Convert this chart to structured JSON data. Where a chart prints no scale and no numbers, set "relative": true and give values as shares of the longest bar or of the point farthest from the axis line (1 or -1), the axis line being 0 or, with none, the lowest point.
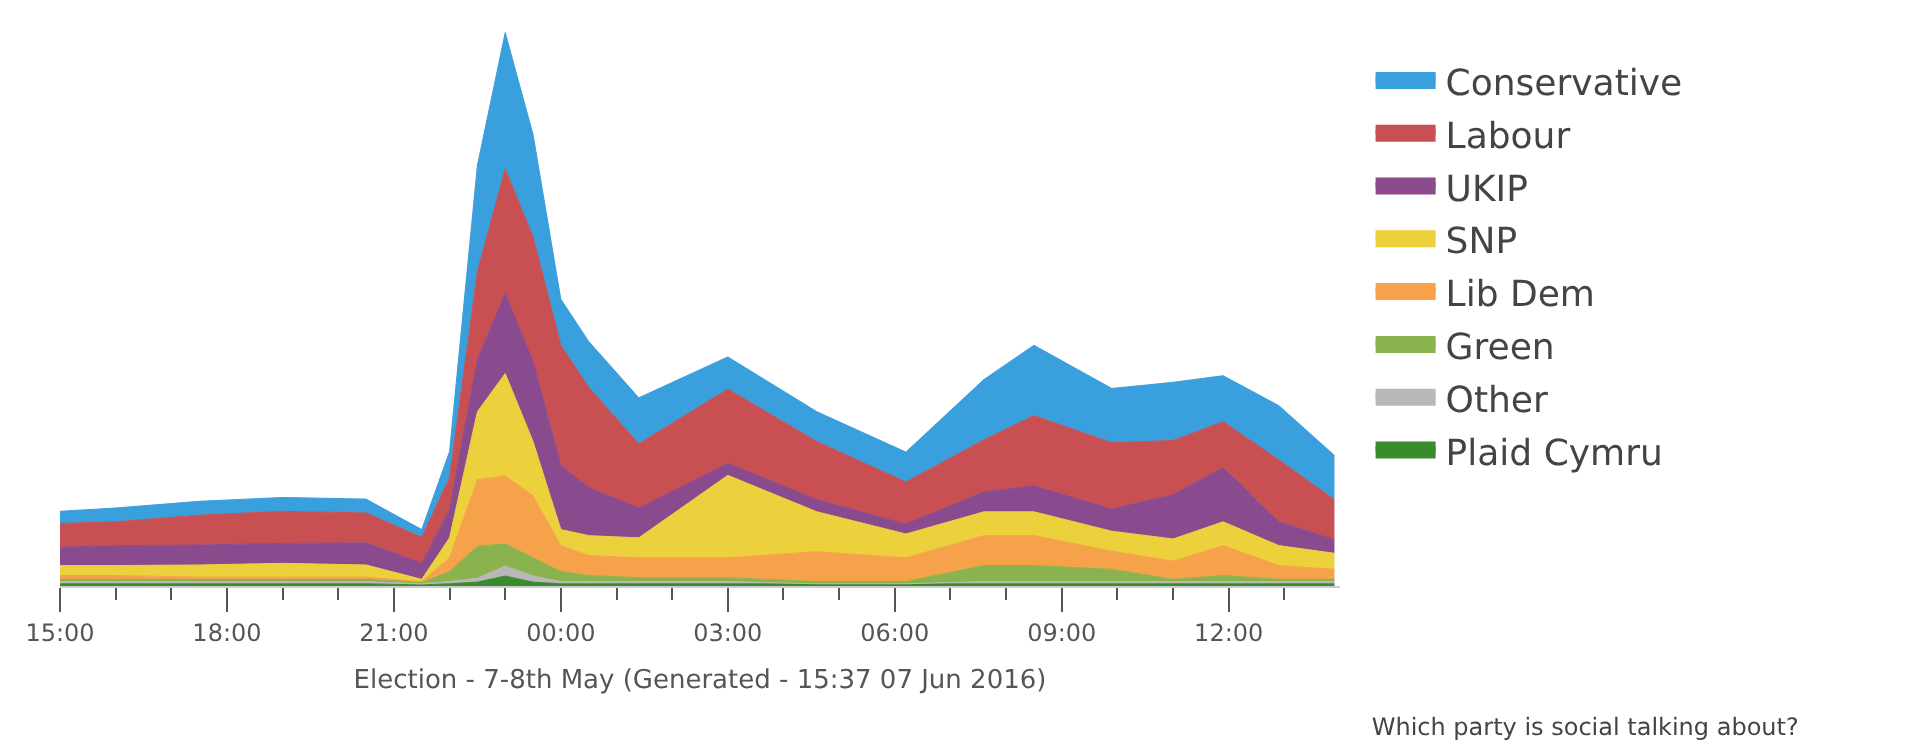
{
  "chart_data": {
    "type": "area",
    "stacked": true,
    "relative": true,
    "title": "Which party is social talking about?",
    "xlabel": "Election - 7-8th May (Generated - 15:37 07 Jun 2016)",
    "x": [
      "--05-07T15:00",
      "--05-07T16:00",
      "--05-07T17:30",
      "--05-07T19:00",
      "--05-07T20:30",
      "--05-07T21:30",
      "--05-07T22:00",
      "--05-07T22:30",
      "--05-07T23:00",
      "--05-07T23:30",
      "--05-08T00:00",
      "--05-08T00:30",
      "--05-08T01:24",
      "--05-08T03:00",
      "--05-08T04:36",
      "--05-08T06:12",
      "--05-08T07:36",
      "--05-08T08:30",
      "--05-08T09:54",
      "--05-08T11:00",
      "--05-08T11:54",
      "--05-08T12:54",
      "--05-08T13:54"
    ],
    "xticks": [
      {
        "value": "--05-07T15:00",
        "label": "15:00"
      },
      {
        "value": "--05-07T16:00",
        "label": null
      },
      {
        "value": "--05-07T17:00",
        "label": null
      },
      {
        "value": "--05-07T18:00",
        "label": "18:00"
      },
      {
        "value": "--05-07T19:00",
        "label": null
      },
      {
        "value": "--05-07T20:00",
        "label": null
      },
      {
        "value": "--05-07T21:00",
        "label": "21:00"
      },
      {
        "value": "--05-07T22:00",
        "label": null
      },
      {
        "value": "--05-07T23:00",
        "label": null
      },
      {
        "value": "--05-08T00:00",
        "label": "00:00"
      },
      {
        "value": "--05-08T01:00",
        "label": null
      },
      {
        "value": "--05-08T02:00",
        "label": null
      },
      {
        "value": "--05-08T03:00",
        "label": "03:00"
      },
      {
        "value": "--05-08T04:00",
        "label": null
      },
      {
        "value": "--05-08T05:00",
        "label": null
      },
      {
        "value": "--05-08T06:00",
        "label": "06:00"
      },
      {
        "value": "--05-08T07:00",
        "label": null
      },
      {
        "value": "--05-08T08:00",
        "label": null
      },
      {
        "value": "--05-08T09:00",
        "label": "09:00"
      },
      {
        "value": "--05-08T10:00",
        "label": null
      },
      {
        "value": "--05-08T11:00",
        "label": null
      },
      {
        "value": "--05-08T12:00",
        "label": "12:00"
      },
      {
        "value": "--05-08T13:00",
        "label": null
      }
    ],
    "xlim": [
      "--05-07T15:00",
      "--05-08T14:00"
    ],
    "legend": "right",
    "series": [
      {
        "name": "Plaid Cymru",
        "color": "#3a8a2e",
        "values": [
          0.004,
          0.004,
          0.004,
          0.004,
          0.004,
          0.002,
          0.004,
          0.007,
          0.018,
          0.007,
          0.004,
          0.004,
          0.004,
          0.004,
          0.004,
          0.004,
          0.004,
          0.004,
          0.004,
          0.004,
          0.004,
          0.004,
          0.004
        ]
      },
      {
        "name": "Other",
        "color": "#b8b8b8",
        "values": [
          0.004,
          0.004,
          0.004,
          0.004,
          0.004,
          0.002,
          0.004,
          0.007,
          0.018,
          0.011,
          0.004,
          0.004,
          0.004,
          0.004,
          0,
          0,
          0.004,
          0.004,
          0.004,
          0.004,
          0.004,
          0.004,
          0.004
        ]
      },
      {
        "name": "Green",
        "color": "#8ab34f",
        "values": [
          0.004,
          0.004,
          0.004,
          0.004,
          0.004,
          0.002,
          0.018,
          0.058,
          0.04,
          0.033,
          0.018,
          0.011,
          0.007,
          0.007,
          0.004,
          0.004,
          0.029,
          0.029,
          0.022,
          0.004,
          0.011,
          0.004,
          0.004
        ]
      },
      {
        "name": "Lib Dem",
        "color": "#f5a24a",
        "values": [
          0.007,
          0.007,
          0.004,
          0.004,
          0.004,
          0.002,
          0.025,
          0.12,
          0.123,
          0.112,
          0.047,
          0.036,
          0.036,
          0.036,
          0.054,
          0.043,
          0.054,
          0.054,
          0.033,
          0.033,
          0.054,
          0.025,
          0.018
        ]
      },
      {
        "name": "SNP",
        "color": "#ecd03c",
        "values": [
          0.018,
          0.018,
          0.022,
          0.025,
          0.022,
          0.004,
          0.036,
          0.123,
          0.185,
          0.098,
          0.029,
          0.036,
          0.036,
          0.149,
          0.072,
          0.043,
          0.043,
          0.043,
          0.036,
          0.04,
          0.043,
          0.036,
          0.029
        ]
      },
      {
        "name": "UKIP",
        "color": "#8a4a8e",
        "values": [
          0.033,
          0.036,
          0.036,
          0.036,
          0.04,
          0.029,
          0.051,
          0.094,
          0.145,
          0.145,
          0.116,
          0.087,
          0.054,
          0.022,
          0.022,
          0.018,
          0.036,
          0.047,
          0.04,
          0.08,
          0.098,
          0.043,
          0.025
        ]
      },
      {
        "name": "Labour",
        "color": "#c85052",
        "values": [
          0.043,
          0.043,
          0.054,
          0.058,
          0.054,
          0.047,
          0.058,
          0.159,
          0.225,
          0.225,
          0.217,
          0.181,
          0.116,
          0.134,
          0.105,
          0.076,
          0.094,
          0.127,
          0.12,
          0.098,
          0.083,
          0.112,
          0.072
        ]
      },
      {
        "name": "Conservative",
        "color": "#3a9fdd",
        "values": [
          0.022,
          0.025,
          0.025,
          0.025,
          0.025,
          0.014,
          0.047,
          0.192,
          0.246,
          0.185,
          0.083,
          0.083,
          0.083,
          0.058,
          0.054,
          0.054,
          0.109,
          0.127,
          0.098,
          0.105,
          0.083,
          0.098,
          0.08
        ]
      }
    ]
  }
}
